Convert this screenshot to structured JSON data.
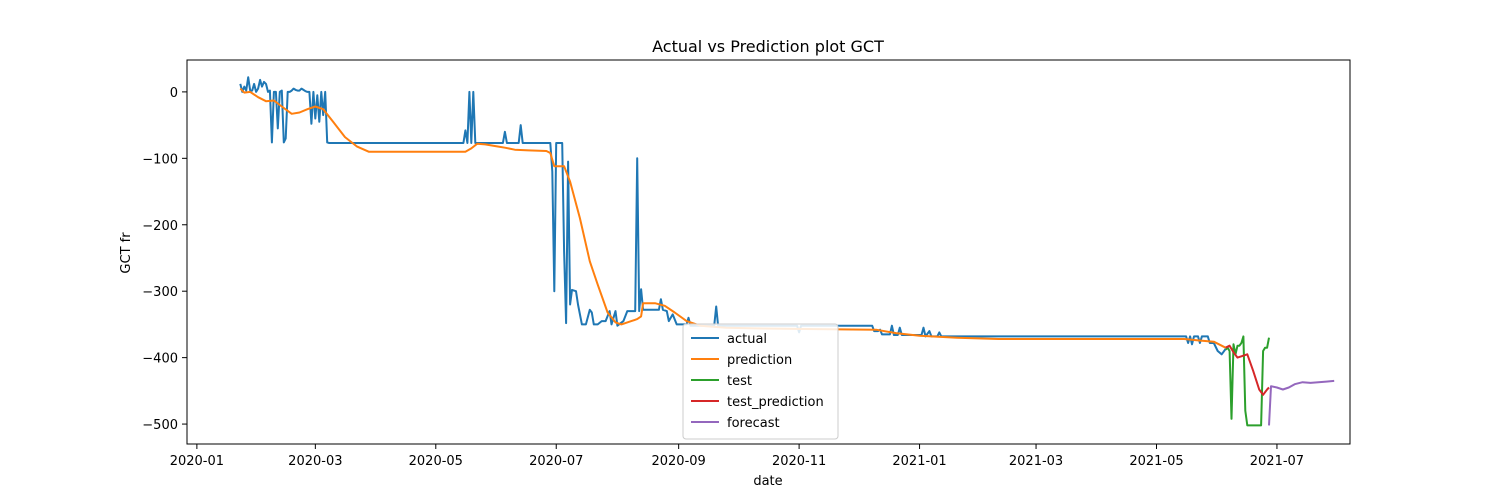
{
  "chart_data": {
    "type": "line",
    "title": "Actual vs Prediction plot GCT",
    "xlabel": "date",
    "ylabel": "GCT fr",
    "x_range": [
      "2019-12-27",
      "2021-08-07"
    ],
    "ylim": [
      -530,
      48
    ],
    "grid": false,
    "legend_position": "lower-center",
    "x_tick_labels": [
      "2020-01",
      "2020-03",
      "2020-05",
      "2020-07",
      "2020-09",
      "2020-11",
      "2021-01",
      "2021-03",
      "2021-05",
      "2021-07"
    ],
    "x_tick_dates": [
      "2020-01-01",
      "2020-03-01",
      "2020-05-01",
      "2020-07-01",
      "2020-09-01",
      "2020-11-01",
      "2021-01-01",
      "2021-03-01",
      "2021-05-01",
      "2021-07-01"
    ],
    "y_ticks": [
      0,
      -100,
      -200,
      -300,
      -400,
      -500
    ],
    "y_tick_labels": [
      "0",
      "−100",
      "−200",
      "−300",
      "−400",
      "−500"
    ],
    "series": [
      {
        "name": "actual",
        "color": "#1f77b4",
        "points": [
          [
            "2020-01-23",
            12
          ],
          [
            "2020-01-24",
            0
          ],
          [
            "2020-01-25",
            8
          ],
          [
            "2020-01-26",
            2
          ],
          [
            "2020-01-27",
            22
          ],
          [
            "2020-01-28",
            2
          ],
          [
            "2020-01-29",
            2
          ],
          [
            "2020-01-30",
            12
          ],
          [
            "2020-01-31",
            0
          ],
          [
            "2020-02-01",
            5
          ],
          [
            "2020-02-02",
            18
          ],
          [
            "2020-02-03",
            8
          ],
          [
            "2020-02-04",
            15
          ],
          [
            "2020-02-05",
            12
          ],
          [
            "2020-02-06",
            0
          ],
          [
            "2020-02-07",
            2
          ],
          [
            "2020-02-08",
            -76
          ],
          [
            "2020-02-09",
            0
          ],
          [
            "2020-02-10",
            0
          ],
          [
            "2020-02-11",
            -55
          ],
          [
            "2020-02-12",
            0
          ],
          [
            "2020-02-13",
            2
          ],
          [
            "2020-02-14",
            -76
          ],
          [
            "2020-02-15",
            -70
          ],
          [
            "2020-02-16",
            0
          ],
          [
            "2020-02-17",
            0
          ],
          [
            "2020-02-18",
            2
          ],
          [
            "2020-02-19",
            5
          ],
          [
            "2020-02-20",
            3
          ],
          [
            "2020-02-21",
            2
          ],
          [
            "2020-02-22",
            2
          ],
          [
            "2020-02-23",
            5
          ],
          [
            "2020-02-24",
            3
          ],
          [
            "2020-02-25",
            1
          ],
          [
            "2020-02-26",
            0
          ],
          [
            "2020-02-27",
            0
          ],
          [
            "2020-02-28",
            -48
          ],
          [
            "2020-02-29",
            0
          ],
          [
            "2020-03-01",
            -40
          ],
          [
            "2020-03-02",
            -5
          ],
          [
            "2020-03-03",
            -45
          ],
          [
            "2020-03-04",
            0
          ],
          [
            "2020-03-05",
            -35
          ],
          [
            "2020-03-06",
            0
          ],
          [
            "2020-03-07",
            -76
          ],
          [
            "2020-03-08",
            -77
          ],
          [
            "2020-05-15",
            -77
          ],
          [
            "2020-05-16",
            -58
          ],
          [
            "2020-05-17",
            -77
          ],
          [
            "2020-05-18",
            0
          ],
          [
            "2020-05-19",
            -77
          ],
          [
            "2020-05-20",
            0
          ],
          [
            "2020-05-21",
            -77
          ],
          [
            "2020-06-04",
            -77
          ],
          [
            "2020-06-05",
            -60
          ],
          [
            "2020-06-06",
            -77
          ],
          [
            "2020-06-12",
            -77
          ],
          [
            "2020-06-13",
            -50
          ],
          [
            "2020-06-14",
            -77
          ],
          [
            "2020-06-28",
            -77
          ],
          [
            "2020-06-29",
            -120
          ],
          [
            "2020-06-30",
            -300
          ],
          [
            "2020-07-01",
            -77
          ],
          [
            "2020-07-04",
            -77
          ],
          [
            "2020-07-05",
            -240
          ],
          [
            "2020-07-06",
            -348
          ],
          [
            "2020-07-07",
            -105
          ],
          [
            "2020-07-08",
            -320
          ],
          [
            "2020-07-09",
            -298
          ],
          [
            "2020-07-11",
            -300
          ],
          [
            "2020-07-12",
            -320
          ],
          [
            "2020-07-14",
            -350
          ],
          [
            "2020-07-16",
            -350
          ],
          [
            "2020-07-18",
            -328
          ],
          [
            "2020-07-19",
            -332
          ],
          [
            "2020-07-20",
            -350
          ],
          [
            "2020-07-22",
            -350
          ],
          [
            "2020-07-24",
            -345
          ],
          [
            "2020-07-26",
            -345
          ],
          [
            "2020-07-28",
            -330
          ],
          [
            "2020-07-29",
            -350
          ],
          [
            "2020-07-31",
            -330
          ],
          [
            "2020-08-01",
            -352
          ],
          [
            "2020-08-04",
            -345
          ],
          [
            "2020-08-06",
            -330
          ],
          [
            "2020-08-08",
            -330
          ],
          [
            "2020-08-10",
            -330
          ],
          [
            "2020-08-11",
            -100
          ],
          [
            "2020-08-12",
            -330
          ],
          [
            "2020-08-13",
            -297
          ],
          [
            "2020-08-14",
            -328
          ],
          [
            "2020-08-22",
            -328
          ],
          [
            "2020-08-23",
            -312
          ],
          [
            "2020-08-24",
            -328
          ],
          [
            "2020-08-26",
            -330
          ],
          [
            "2020-08-27",
            -345
          ],
          [
            "2020-08-29",
            -335
          ],
          [
            "2020-08-31",
            -350
          ],
          [
            "2020-09-05",
            -350
          ],
          [
            "2020-09-06",
            -340
          ],
          [
            "2020-09-07",
            -352
          ],
          [
            "2020-09-19",
            -352
          ],
          [
            "2020-09-20",
            -323
          ],
          [
            "2020-09-21",
            -352
          ],
          [
            "2020-10-31",
            -352
          ],
          [
            "2020-11-01",
            -362
          ],
          [
            "2020-11-02",
            -352
          ],
          [
            "2020-12-08",
            -352
          ],
          [
            "2020-12-09",
            -360
          ],
          [
            "2020-12-11",
            -360
          ],
          [
            "2020-12-12",
            -358
          ],
          [
            "2020-12-13",
            -365
          ],
          [
            "2020-12-15",
            -365
          ],
          [
            "2020-12-17",
            -365
          ],
          [
            "2020-12-18",
            -352
          ],
          [
            "2020-12-19",
            -366
          ],
          [
            "2020-12-21",
            -366
          ],
          [
            "2020-12-22",
            -355
          ],
          [
            "2020-12-23",
            -366
          ],
          [
            "2020-12-28",
            -366
          ],
          [
            "2021-01-02",
            -366
          ],
          [
            "2021-01-03",
            -355
          ],
          [
            "2021-01-04",
            -368
          ],
          [
            "2021-01-06",
            -360
          ],
          [
            "2021-01-07",
            -368
          ],
          [
            "2021-01-10",
            -368
          ],
          [
            "2021-01-11",
            -362
          ],
          [
            "2021-01-12",
            -368
          ],
          [
            "2021-05-16",
            -368
          ],
          [
            "2021-05-17",
            -378
          ],
          [
            "2021-05-18",
            -368
          ],
          [
            "2021-05-19",
            -380
          ],
          [
            "2021-05-20",
            -368
          ],
          [
            "2021-05-22",
            -368
          ],
          [
            "2021-05-23",
            -378
          ],
          [
            "2021-05-24",
            -368
          ],
          [
            "2021-05-27",
            -368
          ],
          [
            "2021-05-28",
            -378
          ],
          [
            "2021-05-30",
            -378
          ],
          [
            "2021-06-01",
            -390
          ],
          [
            "2021-06-03",
            -395
          ],
          [
            "2021-06-05",
            -387
          ]
        ]
      },
      {
        "name": "prediction",
        "color": "#ff7f0e",
        "points": [
          [
            "2020-01-23",
            5
          ],
          [
            "2020-01-25",
            -1
          ],
          [
            "2020-01-28",
            0
          ],
          [
            "2020-02-01",
            -8
          ],
          [
            "2020-02-05",
            -14
          ],
          [
            "2020-02-09",
            -13
          ],
          [
            "2020-02-13",
            -22
          ],
          [
            "2020-02-18",
            -33
          ],
          [
            "2020-02-22",
            -31
          ],
          [
            "2020-02-26",
            -26
          ],
          [
            "2020-03-01",
            -22
          ],
          [
            "2020-03-05",
            -26
          ],
          [
            "2020-03-10",
            -45
          ],
          [
            "2020-03-16",
            -68
          ],
          [
            "2020-03-22",
            -82
          ],
          [
            "2020-03-28",
            -90
          ],
          [
            "2020-04-10",
            -90
          ],
          [
            "2020-05-16",
            -90
          ],
          [
            "2020-05-19",
            -85
          ],
          [
            "2020-05-22",
            -78
          ],
          [
            "2020-05-26",
            -79
          ],
          [
            "2020-06-01",
            -82
          ],
          [
            "2020-06-05",
            -84
          ],
          [
            "2020-06-10",
            -87
          ],
          [
            "2020-06-17",
            -88
          ],
          [
            "2020-06-26",
            -89
          ],
          [
            "2020-06-28",
            -92
          ],
          [
            "2020-06-30",
            -112
          ],
          [
            "2020-07-05",
            -112
          ],
          [
            "2020-07-08",
            -135
          ],
          [
            "2020-07-13",
            -190
          ],
          [
            "2020-07-18",
            -255
          ],
          [
            "2020-07-22",
            -290
          ],
          [
            "2020-07-27",
            -332
          ],
          [
            "2020-07-31",
            -347
          ],
          [
            "2020-08-03",
            -350
          ],
          [
            "2020-08-08",
            -345
          ],
          [
            "2020-08-11",
            -342
          ],
          [
            "2020-08-13",
            -338
          ],
          [
            "2020-08-14",
            -318
          ],
          [
            "2020-08-20",
            -318
          ],
          [
            "2020-08-25",
            -322
          ],
          [
            "2020-08-30",
            -332
          ],
          [
            "2020-09-05",
            -345
          ],
          [
            "2020-09-12",
            -352
          ],
          [
            "2020-09-25",
            -355
          ],
          [
            "2020-10-10",
            -356
          ],
          [
            "2020-11-10",
            -357
          ],
          [
            "2020-12-10",
            -358
          ],
          [
            "2020-12-20",
            -363
          ],
          [
            "2021-01-01",
            -367
          ],
          [
            "2021-01-20",
            -370
          ],
          [
            "2021-02-10",
            -372
          ],
          [
            "2021-05-15",
            -372
          ],
          [
            "2021-05-22",
            -374
          ],
          [
            "2021-05-30",
            -376
          ],
          [
            "2021-06-05",
            -385
          ]
        ]
      },
      {
        "name": "test",
        "color": "#2ca02c",
        "points": [
          [
            "2021-06-05",
            -388
          ],
          [
            "2021-06-06",
            -385
          ],
          [
            "2021-06-07",
            -390
          ],
          [
            "2021-06-08",
            -492
          ],
          [
            "2021-06-09",
            -380
          ],
          [
            "2021-06-10",
            -395
          ],
          [
            "2021-06-11",
            -382
          ],
          [
            "2021-06-12",
            -382
          ],
          [
            "2021-06-13",
            -378
          ],
          [
            "2021-06-14",
            -368
          ],
          [
            "2021-06-15",
            -480
          ],
          [
            "2021-06-16",
            -502
          ],
          [
            "2021-06-17",
            -502
          ],
          [
            "2021-06-22",
            -502
          ],
          [
            "2021-06-23",
            -502
          ],
          [
            "2021-06-24",
            -390
          ],
          [
            "2021-06-25",
            -385
          ],
          [
            "2021-06-26",
            -385
          ],
          [
            "2021-06-27",
            -370
          ]
        ]
      },
      {
        "name": "test_prediction",
        "color": "#d62728",
        "points": [
          [
            "2021-06-05",
            -385
          ],
          [
            "2021-06-07",
            -382
          ],
          [
            "2021-06-09",
            -392
          ],
          [
            "2021-06-11",
            -400
          ],
          [
            "2021-06-13",
            -398
          ],
          [
            "2021-06-16",
            -395
          ],
          [
            "2021-06-19",
            -420
          ],
          [
            "2021-06-22",
            -448
          ],
          [
            "2021-06-24",
            -456
          ],
          [
            "2021-06-26",
            -448
          ],
          [
            "2021-06-27",
            -445
          ]
        ]
      },
      {
        "name": "forecast",
        "color": "#9467bd",
        "points": [
          [
            "2021-06-27",
            -502
          ],
          [
            "2021-06-28",
            -443
          ],
          [
            "2021-07-01",
            -445
          ],
          [
            "2021-07-04",
            -448
          ],
          [
            "2021-07-07",
            -445
          ],
          [
            "2021-07-10",
            -440
          ],
          [
            "2021-07-14",
            -437
          ],
          [
            "2021-07-18",
            -438
          ],
          [
            "2021-07-22",
            -437
          ],
          [
            "2021-07-26",
            -436
          ],
          [
            "2021-07-30",
            -435
          ]
        ]
      }
    ]
  }
}
